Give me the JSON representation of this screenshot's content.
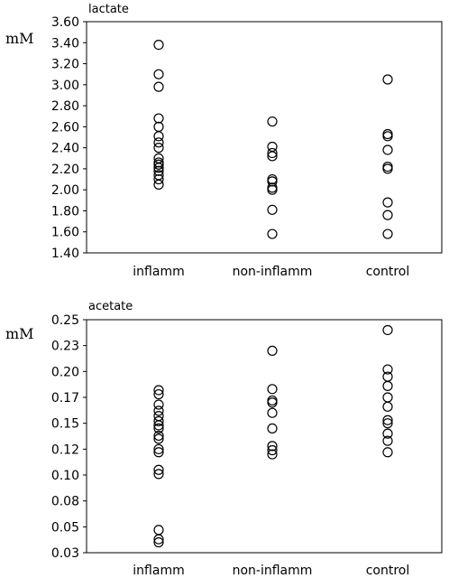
{
  "chart_data": [
    {
      "type": "scatter",
      "title": "lactate",
      "ylabel": "mM",
      "xlabel": "",
      "categories": [
        "inflamm",
        "non-inflamm",
        "control"
      ],
      "yticks": [
        "1.40",
        "1.60",
        "1.80",
        "2.00",
        "2.20",
        "2.40",
        "2.60",
        "2.80",
        "3.00",
        "3.20",
        "3.40",
        "3.60"
      ],
      "ylim": [
        1.4,
        3.6
      ],
      "grid": false,
      "series": [
        {
          "category": "inflamm",
          "values": [
            3.38,
            3.1,
            2.98,
            2.68,
            2.6,
            2.51,
            2.45,
            2.4,
            2.3,
            2.26,
            2.24,
            2.21,
            2.18,
            2.14,
            2.1,
            2.05
          ]
        },
        {
          "category": "non-inflamm",
          "values": [
            2.65,
            2.41,
            2.35,
            2.32,
            2.1,
            2.08,
            2.02,
            2.0,
            1.81,
            1.58
          ]
        },
        {
          "category": "control",
          "values": [
            3.05,
            2.53,
            2.51,
            2.38,
            2.22,
            2.2,
            1.88,
            1.76,
            1.58
          ]
        }
      ]
    },
    {
      "type": "scatter",
      "title": "acetate",
      "ylabel": "mM",
      "xlabel": "",
      "categories": [
        "inflamm",
        "non-inflamm",
        "control"
      ],
      "yticks": [
        "0.03",
        "0.05",
        "0.08",
        "0.10",
        "0.12",
        "0.15",
        "0.17",
        "0.20",
        "0.23",
        "0.25"
      ],
      "ylim": [
        0.025,
        0.25
      ],
      "grid": false,
      "series": [
        {
          "category": "inflamm",
          "values": [
            0.182,
            0.178,
            0.168,
            0.162,
            0.157,
            0.152,
            0.148,
            0.145,
            0.138,
            0.135,
            0.125,
            0.122,
            0.105,
            0.101,
            0.047,
            0.038,
            0.035
          ]
        },
        {
          "category": "non-inflamm",
          "values": [
            0.22,
            0.183,
            0.172,
            0.17,
            0.16,
            0.145,
            0.128,
            0.124,
            0.12
          ]
        },
        {
          "category": "control",
          "values": [
            0.24,
            0.202,
            0.195,
            0.186,
            0.175,
            0.166,
            0.153,
            0.15,
            0.14,
            0.133,
            0.122
          ]
        }
      ]
    }
  ]
}
